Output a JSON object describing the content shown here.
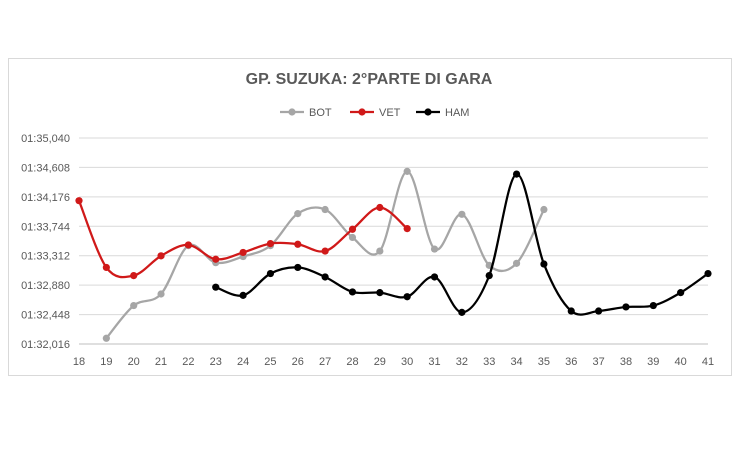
{
  "chart_data": {
    "type": "line",
    "title": "GP. SUZUKA: 2°PARTE DI GARA",
    "xlabel": "",
    "ylabel": "",
    "x": [
      18,
      19,
      20,
      21,
      22,
      23,
      24,
      25,
      26,
      27,
      28,
      29,
      30,
      31,
      32,
      33,
      34,
      35,
      36,
      37,
      38,
      39,
      40,
      41
    ],
    "x_tick_labels": [
      "18",
      "19",
      "20",
      "21",
      "22",
      "23",
      "24",
      "25",
      "26",
      "27",
      "28",
      "29",
      "30",
      "31",
      "32",
      "33",
      "34",
      "35",
      "36",
      "37",
      "38",
      "39",
      "40",
      "41"
    ],
    "y_tick_labels": [
      "01:32,016",
      "01:32,448",
      "01:32,880",
      "01:33,312",
      "01:33,744",
      "01:34,176",
      "01:34,608",
      "01:35,040"
    ],
    "y_tick_values": [
      92.016,
      92.448,
      92.88,
      93.312,
      93.744,
      94.176,
      94.608,
      95.04
    ],
    "ylim": [
      92.016,
      95.04
    ],
    "grid": true,
    "legend_position": "top-center",
    "smooth": true,
    "series": [
      {
        "name": "BOT",
        "color": "#a6a6a6",
        "points": [
          [
            19,
            92.1
          ],
          [
            20,
            92.58
          ],
          [
            21,
            92.75
          ],
          [
            22,
            93.46
          ],
          [
            23,
            93.21
          ],
          [
            24,
            93.3
          ],
          [
            25,
            93.46
          ],
          [
            26,
            93.93
          ],
          [
            27,
            93.99
          ],
          [
            28,
            93.58
          ],
          [
            29,
            93.38
          ],
          [
            30,
            94.55
          ],
          [
            31,
            93.41
          ],
          [
            32,
            93.92
          ],
          [
            33,
            93.17
          ],
          [
            34,
            93.2
          ],
          [
            35,
            93.99
          ]
        ]
      },
      {
        "name": "VET",
        "color": "#d01919",
        "points": [
          [
            18,
            94.12
          ],
          [
            19,
            93.14
          ],
          [
            20,
            93.02
          ],
          [
            21,
            93.31
          ],
          [
            22,
            93.47
          ],
          [
            23,
            93.26
          ],
          [
            24,
            93.36
          ],
          [
            25,
            93.49
          ],
          [
            26,
            93.48
          ],
          [
            27,
            93.38
          ],
          [
            28,
            93.7
          ],
          [
            29,
            94.02
          ],
          [
            30,
            93.71
          ]
        ]
      },
      {
        "name": "HAM",
        "color": "#000000",
        "points": [
          [
            23,
            92.85
          ],
          [
            24,
            92.73
          ],
          [
            25,
            93.05
          ],
          [
            26,
            93.14
          ],
          [
            27,
            93.0
          ],
          [
            28,
            92.78
          ],
          [
            29,
            92.77
          ],
          [
            30,
            92.71
          ],
          [
            31,
            93.0
          ],
          [
            32,
            92.48
          ],
          [
            33,
            93.02
          ],
          [
            34,
            94.51
          ],
          [
            35,
            93.19
          ],
          [
            36,
            92.5
          ],
          [
            37,
            92.5
          ],
          [
            38,
            92.56
          ],
          [
            39,
            92.58
          ],
          [
            40,
            92.77
          ],
          [
            41,
            93.05
          ]
        ]
      }
    ]
  }
}
